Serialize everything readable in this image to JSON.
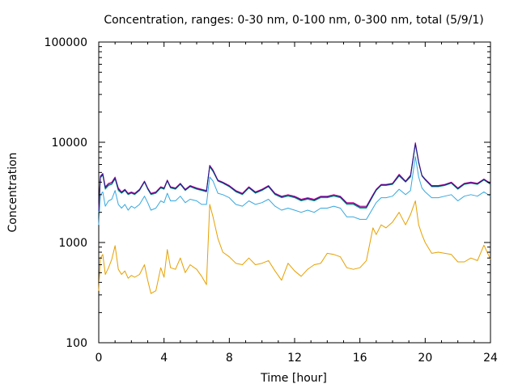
{
  "chart_data": {
    "type": "line",
    "title": "Concentration, ranges: 0-30 nm, 0-100 nm, 0-300 nm, total (5/9/1)",
    "xlabel": "Time [hour]",
    "ylabel": "Concentration",
    "xlim": [
      0,
      24
    ],
    "ylim": [
      100,
      100000
    ],
    "yscale": "log",
    "grid": false,
    "x_ticks": [
      0,
      4,
      8,
      12,
      16,
      20,
      24
    ],
    "x_tick_labels": [
      "0",
      "4",
      "8",
      "12",
      "16",
      "20",
      "24"
    ],
    "y_ticks": [
      100,
      1000,
      10000,
      100000
    ],
    "y_tick_labels": [
      "100",
      "1000",
      "10000",
      "100000"
    ],
    "x": [
      0,
      0.1,
      0.25,
      0.4,
      0.6,
      0.8,
      1.0,
      1.2,
      1.4,
      1.6,
      1.8,
      2.0,
      2.2,
      2.5,
      2.8,
      3.0,
      3.2,
      3.5,
      3.8,
      4.0,
      4.2,
      4.4,
      4.7,
      5.0,
      5.3,
      5.6,
      6.0,
      6.3,
      6.6,
      6.8,
      7.0,
      7.3,
      7.6,
      8.0,
      8.4,
      8.8,
      9.2,
      9.6,
      10.0,
      10.4,
      10.8,
      11.2,
      11.6,
      12.0,
      12.4,
      12.8,
      13.2,
      13.6,
      14.0,
      14.4,
      14.8,
      15.2,
      15.6,
      16.0,
      16.4,
      16.8,
      17.0,
      17.3,
      17.6,
      18.0,
      18.4,
      18.8,
      19.1,
      19.4,
      19.6,
      19.8,
      20.0,
      20.4,
      20.8,
      21.2,
      21.6,
      22.0,
      22.4,
      22.8,
      23.2,
      23.6,
      24.0
    ],
    "series": [
      {
        "color": "#E6A000",
        "values": [
          330,
          700,
          760,
          480,
          560,
          680,
          930,
          540,
          480,
          520,
          440,
          470,
          450,
          480,
          600,
          420,
          310,
          330,
          560,
          450,
          850,
          560,
          540,
          700,
          500,
          600,
          540,
          460,
          380,
          2400,
          1800,
          1100,
          800,
          720,
          620,
          600,
          700,
          600,
          620,
          660,
          520,
          420,
          620,
          520,
          460,
          540,
          600,
          620,
          780,
          760,
          720,
          560,
          540,
          560,
          660,
          1400,
          1200,
          1500,
          1400,
          1600,
          2000,
          1500,
          1900,
          2600,
          1500,
          1200,
          1000,
          780,
          800,
          780,
          760,
          640,
          640,
          700,
          660,
          940,
          680
        ]
      },
      {
        "color": "#35A8E0",
        "values": [
          1500,
          3000,
          3200,
          2300,
          2600,
          2700,
          3300,
          2400,
          2200,
          2400,
          2100,
          2300,
          2200,
          2400,
          2900,
          2500,
          2100,
          2200,
          2600,
          2500,
          3100,
          2600,
          2600,
          2900,
          2500,
          2700,
          2600,
          2400,
          2400,
          4500,
          4100,
          3100,
          3000,
          2800,
          2400,
          2300,
          2600,
          2400,
          2500,
          2700,
          2300,
          2100,
          2200,
          2100,
          2000,
          2100,
          2000,
          2200,
          2200,
          2300,
          2200,
          1800,
          1800,
          1700,
          1700,
          2200,
          2500,
          2800,
          2800,
          2900,
          3400,
          3000,
          3300,
          7200,
          4500,
          3500,
          3200,
          2800,
          2800,
          2900,
          3000,
          2600,
          2900,
          3000,
          2900,
          3200,
          2900
        ]
      },
      {
        "color": "#009E73",
        "values": [
          2000,
          4400,
          4700,
          3400,
          3700,
          3800,
          4300,
          3300,
          3100,
          3300,
          3000,
          3100,
          3000,
          3300,
          4000,
          3400,
          3000,
          3100,
          3500,
          3400,
          4100,
          3500,
          3400,
          3800,
          3300,
          3600,
          3400,
          3300,
          3200,
          5700,
          5100,
          4100,
          3900,
          3600,
          3200,
          3000,
          3500,
          3100,
          3300,
          3600,
          3000,
          2800,
          2900,
          2800,
          2600,
          2700,
          2600,
          2800,
          2800,
          2900,
          2800,
          2400,
          2400,
          2200,
          2200,
          2900,
          3300,
          3700,
          3700,
          3800,
          4600,
          4000,
          4500,
          9500,
          6200,
          4600,
          4200,
          3600,
          3600,
          3700,
          3900,
          3400,
          3800,
          3900,
          3800,
          4200,
          3800
        ]
      },
      {
        "color": "#CC0099",
        "values": [
          2100,
          4600,
          4900,
          3600,
          3900,
          4000,
          4500,
          3500,
          3200,
          3400,
          3100,
          3200,
          3100,
          3400,
          4100,
          3500,
          3100,
          3200,
          3600,
          3500,
          4200,
          3600,
          3500,
          3900,
          3400,
          3700,
          3500,
          3400,
          3300,
          5900,
          5300,
          4200,
          4000,
          3700,
          3300,
          3100,
          3600,
          3200,
          3400,
          3700,
          3100,
          2900,
          3000,
          2900,
          2700,
          2800,
          2700,
          2900,
          2900,
          3000,
          2900,
          2500,
          2500,
          2300,
          2300,
          3000,
          3400,
          3800,
          3800,
          3900,
          4800,
          4100,
          4700,
          9900,
          6400,
          4700,
          4300,
          3700,
          3700,
          3800,
          4000,
          3500,
          3900,
          4000,
          3900,
          4300,
          3900
        ]
      },
      {
        "color": "#1A1A8C",
        "values": [
          2050,
          4500,
          4800,
          3500,
          3800,
          3900,
          4400,
          3400,
          3150,
          3350,
          3050,
          3150,
          3050,
          3350,
          4050,
          3450,
          3050,
          3150,
          3550,
          3450,
          4150,
          3550,
          3450,
          3850,
          3350,
          3650,
          3450,
          3350,
          3250,
          5800,
          5200,
          4150,
          3950,
          3650,
          3250,
          3050,
          3550,
          3150,
          3350,
          3650,
          3050,
          2850,
          2950,
          2850,
          2650,
          2750,
          2650,
          2850,
          2850,
          2950,
          2850,
          2450,
          2450,
          2250,
          2250,
          2950,
          3350,
          3750,
          3750,
          3850,
          4700,
          4050,
          4600,
          9700,
          6300,
          4650,
          4250,
          3650,
          3650,
          3750,
          3950,
          3450,
          3850,
          3950,
          3850,
          4250,
          3850
        ]
      }
    ]
  }
}
